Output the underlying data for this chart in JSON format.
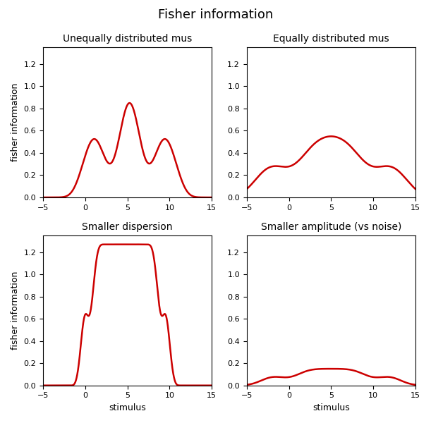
{
  "title": "Fisher information",
  "titles": [
    "Unequally distributed mus",
    "Equally distributed mus",
    "Smaller dispersion",
    "Smaller amplitude (vs noise)"
  ],
  "xlabel": "stimulus",
  "ylabel": "fisher information",
  "line_color": "#cc0000",
  "line_width": 1.8,
  "xlim": [
    -5,
    15
  ],
  "ylim": [
    0,
    1.35
  ],
  "figsize": [
    6.11,
    6.0
  ],
  "dpi": 100
}
